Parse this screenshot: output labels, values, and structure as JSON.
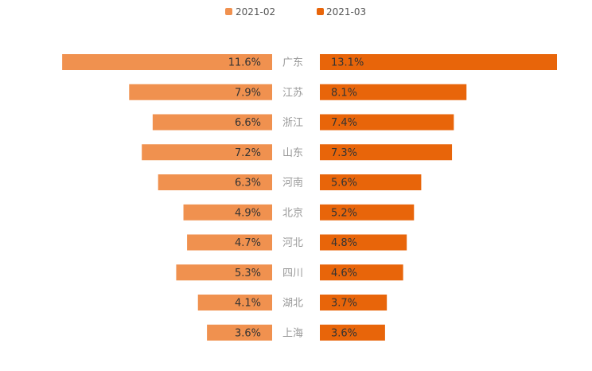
{
  "chart_data": {
    "type": "bar",
    "orientation": "horizontal-butterfly",
    "categories": [
      "广东",
      "江苏",
      "浙江",
      "山东",
      "河南",
      "北京",
      "河北",
      "四川",
      "湖北",
      "上海"
    ],
    "series": [
      {
        "name": "2021-02",
        "color": "#F0914F",
        "side": "left",
        "values": [
          11.6,
          7.9,
          6.6,
          7.2,
          6.3,
          4.9,
          4.7,
          5.3,
          4.1,
          3.6
        ],
        "labels": [
          "11.6%",
          "7.9%",
          "6.6%",
          "7.2%",
          "6.3%",
          "4.9%",
          "4.7%",
          "5.3%",
          "4.1%",
          "3.6%"
        ]
      },
      {
        "name": "2021-03",
        "color": "#E8650A",
        "side": "right",
        "values": [
          13.1,
          8.1,
          7.4,
          7.3,
          5.6,
          5.2,
          4.8,
          4.6,
          3.7,
          3.6
        ],
        "labels": [
          "13.1%",
          "8.1%",
          "7.4%",
          "7.3%",
          "5.6%",
          "5.2%",
          "4.8%",
          "4.6%",
          "3.7%",
          "3.6%"
        ]
      }
    ],
    "legend_position": "top-center",
    "grid": false,
    "xlim": [
      0,
      13.1
    ]
  }
}
